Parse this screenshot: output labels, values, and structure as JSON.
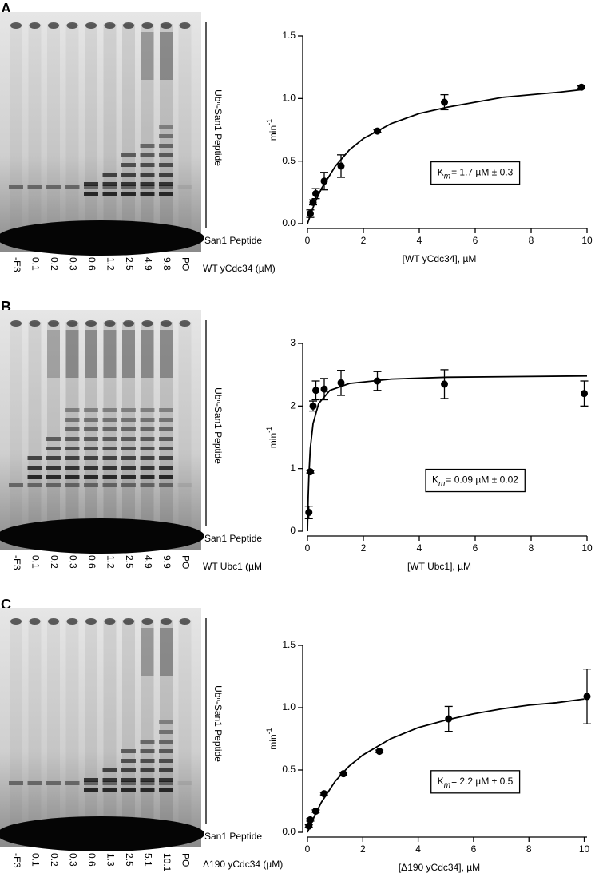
{
  "panels": [
    {
      "letter": "A",
      "lanes": [
        "-E3",
        "0.1",
        "0.2",
        "0.3",
        "0.6",
        "1.2",
        "2.5",
        "4.9",
        "9.8",
        "PO"
      ],
      "gel_label": "WT yCdc34 (µM)",
      "smear_label": "Ubⁿ-San1 Peptide",
      "peptide_label": "San1 Peptide"
    },
    {
      "letter": "B",
      "lanes": [
        "-E3",
        "0.1",
        "0.2",
        "0.3",
        "0.6",
        "1.2",
        "2.5",
        "4.9",
        "9.9",
        "PO"
      ],
      "gel_label": "WT Ubc1 (µM",
      "smear_label": "Ubⁿ-San1 Peptide",
      "peptide_label": "San1 Peptide"
    },
    {
      "letter": "C",
      "lanes": [
        "-E3",
        "0.1",
        "0.2",
        "0.3",
        "0.6",
        "1.3",
        "2.5",
        "5.1",
        "10.1",
        "PO"
      ],
      "gel_label": "Δ190 yCdc34 (µM)",
      "smear_label": "Ubⁿ-San1 Peptide",
      "peptide_label": "San1 Peptide"
    }
  ],
  "chart_data": [
    {
      "type": "scatter",
      "xlabel": "[WT yCdc34], µM",
      "ylabel": "min",
      "ylabel_sup": "-1",
      "annotation": {
        "symbol": "K",
        "subscript": "m",
        "text": "= 1.7 µM ± 0.3"
      },
      "x": [
        0.1,
        0.2,
        0.3,
        0.6,
        1.2,
        2.5,
        4.9,
        9.8
      ],
      "values": [
        0.08,
        0.17,
        0.24,
        0.34,
        0.46,
        0.74,
        0.97,
        1.09
      ],
      "errors": [
        0.03,
        0.02,
        0.04,
        0.07,
        0.09,
        0.01,
        0.06,
        0.01
      ],
      "curve": {
        "x": [
          0,
          0.25,
          0.5,
          1,
          1.5,
          2,
          3,
          4,
          5,
          6,
          7,
          8,
          9,
          9.8
        ],
        "values": [
          0,
          0.16,
          0.28,
          0.46,
          0.59,
          0.68,
          0.8,
          0.88,
          0.93,
          0.97,
          1.01,
          1.03,
          1.05,
          1.07
        ]
      },
      "xlim": [
        0,
        10
      ],
      "ylim": [
        0,
        1.5
      ],
      "xticks": [
        0,
        2,
        4,
        6,
        8,
        10
      ],
      "yticks": [
        {
          "value": 0,
          "label": "0.0"
        },
        0.5,
        {
          "value": 1,
          "label": "1.0"
        },
        1.5
      ],
      "color": "#000000"
    },
    {
      "type": "scatter",
      "xlabel": "[WT Ubc1], µM",
      "ylabel": "min",
      "ylabel_sup": "-1",
      "annotation": {
        "symbol": "K",
        "subscript": "m",
        "text": "= 0.09 µM ± 0.02"
      },
      "x": [
        0.05,
        0.1,
        0.2,
        0.3,
        0.6,
        1.2,
        2.5,
        4.9,
        9.9
      ],
      "values": [
        0.3,
        0.95,
        2.0,
        2.25,
        2.27,
        2.37,
        2.4,
        2.35,
        2.2
      ],
      "errors": [
        0.1,
        0.02,
        0.08,
        0.15,
        0.17,
        0.2,
        0.15,
        0.23,
        0.2
      ],
      "curve": {
        "x": [
          0,
          0.025,
          0.05,
          0.1,
          0.2,
          0.4,
          0.8,
          1.5,
          3,
          5,
          7.5,
          10
        ],
        "values": [
          0,
          0.54,
          0.89,
          1.32,
          1.72,
          2.04,
          2.25,
          2.36,
          2.43,
          2.46,
          2.47,
          2.48
        ]
      },
      "xlim": [
        0,
        10
      ],
      "ylim": [
        0,
        3
      ],
      "xticks": [
        0,
        2,
        4,
        6,
        8,
        10
      ],
      "yticks": [
        0,
        1,
        2,
        3
      ],
      "color": "#000000"
    },
    {
      "type": "scatter",
      "xlabel": "[Δ190 yCdc34], µM",
      "ylabel": "min",
      "ylabel_sup": "-1",
      "annotation": {
        "symbol": "K",
        "subscript": "m",
        "text": "= 2.2 µM ± 0.5"
      },
      "x": [
        0.05,
        0.1,
        0.3,
        0.6,
        1.3,
        2.6,
        5.1,
        10.1
      ],
      "values": [
        0.05,
        0.1,
        0.17,
        0.31,
        0.47,
        0.65,
        0.91,
        1.09
      ],
      "errors": [
        0.01,
        0.01,
        0.01,
        0.01,
        0.01,
        0.01,
        0.1,
        0.22
      ],
      "curve": {
        "x": [
          0,
          0.25,
          0.5,
          1,
          1.5,
          2,
          3,
          4,
          5,
          6,
          7,
          8,
          9,
          10
        ],
        "values": [
          0,
          0.13,
          0.24,
          0.41,
          0.53,
          0.62,
          0.75,
          0.84,
          0.9,
          0.95,
          0.99,
          1.02,
          1.04,
          1.07
        ]
      },
      "xlim": [
        0,
        10.1
      ],
      "ylim": [
        0,
        1.5
      ],
      "xticks": [
        0,
        2,
        4,
        6,
        8,
        10
      ],
      "yticks": [
        {
          "value": 0,
          "label": "0.0"
        },
        0.5,
        {
          "value": 1,
          "label": "1.0"
        },
        1.5
      ],
      "color": "#000000"
    }
  ]
}
